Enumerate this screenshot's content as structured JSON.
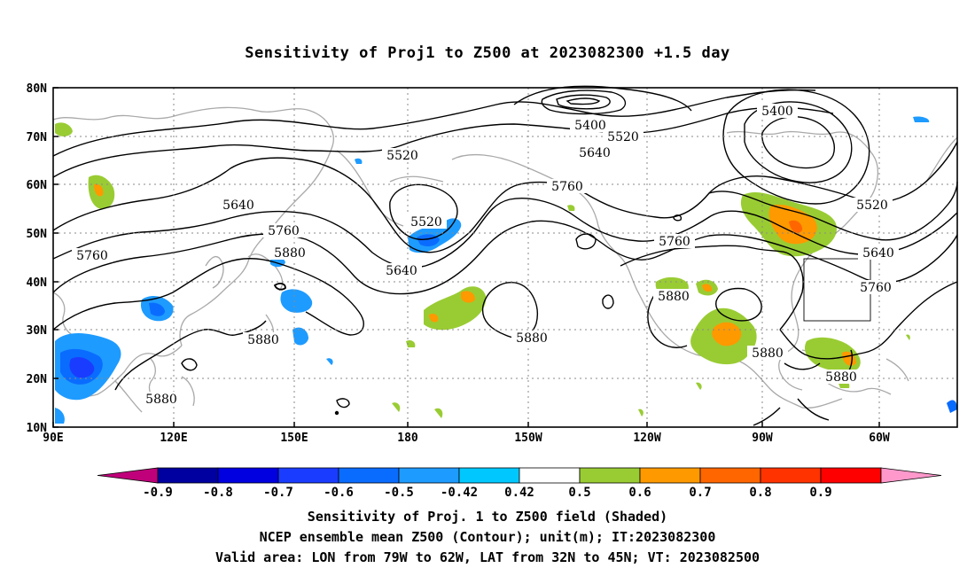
{
  "title": "Sensitivity of Proj1 to Z500 at 2023082300 +1.5 day",
  "map": {
    "lat_ticks": [
      "80N",
      "70N",
      "60N",
      "50N",
      "40N",
      "30N",
      "20N",
      "10N"
    ],
    "lon_ticks": [
      "90E",
      "120E",
      "150E",
      "180",
      "150W",
      "120W",
      "90W",
      "60W"
    ],
    "contour_labels": [
      "5400",
      "5400",
      "5520",
      "5520",
      "5520",
      "5520",
      "5640",
      "5640",
      "5640",
      "5640",
      "5760",
      "5760",
      "5760",
      "5760",
      "5760",
      "5880",
      "5880",
      "5880",
      "5880",
      "5880",
      "5880",
      "5880"
    ],
    "valid_area_box": {
      "lon_from": "79W",
      "lon_to": "62W",
      "lat_from": "32N",
      "lat_to": "45N"
    }
  },
  "colorbar": {
    "labels": [
      "-0.9",
      "-0.8",
      "-0.7",
      "-0.6",
      "-0.5",
      "-0.42",
      "0.42",
      "0.5",
      "0.6",
      "0.7",
      "0.8",
      "0.9"
    ],
    "colors": [
      "#c0007a",
      "#0000a0",
      "#0000e0",
      "#1a3cff",
      "#0a6cff",
      "#1e9bff",
      "#00c8ff",
      "#ffffff",
      "#99cc33",
      "#ff9900",
      "#ff6600",
      "#ff3300",
      "#ff0000",
      "#ff99cc"
    ]
  },
  "caption": {
    "line1": "Sensitivity of Proj. 1 to Z500 field (Shaded)",
    "line2": "NCEP ensemble mean Z500 (Contour); unit(m); IT:2023082300",
    "line3": "Valid area: LON from 79W to 62W, LAT from 32N to 45N; VT: 2023082500"
  }
}
